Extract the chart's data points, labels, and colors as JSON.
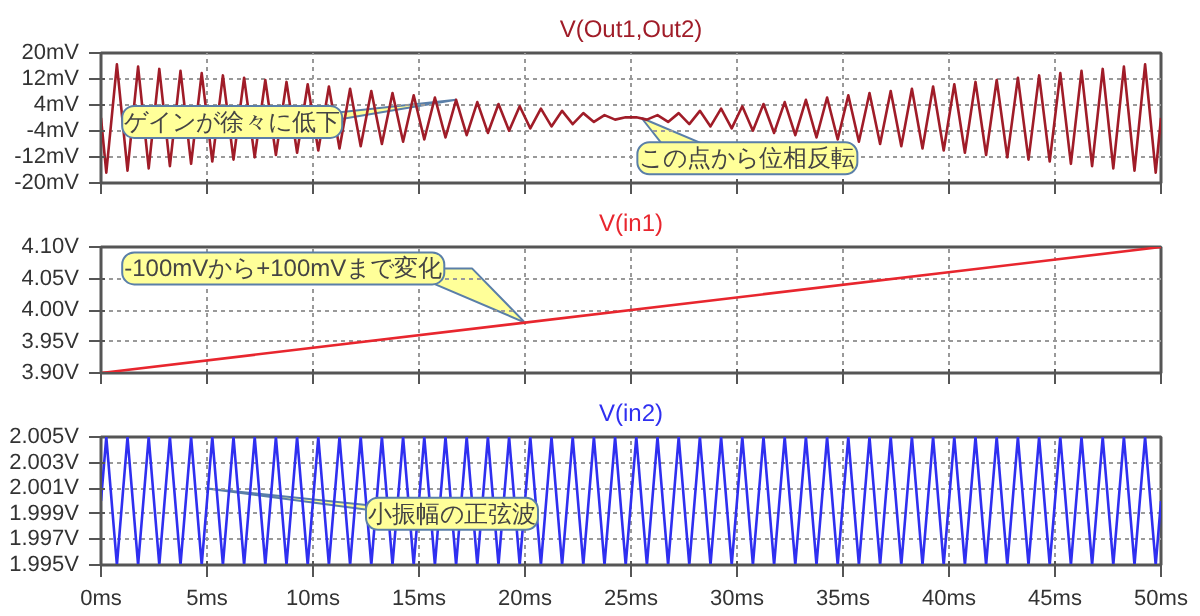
{
  "chart_data": [
    {
      "type": "line",
      "x": [
        0,
        0.25,
        0.75,
        1.25,
        1.75,
        2.25,
        2.75,
        3.25,
        3.75,
        4.25,
        4.75,
        5.25,
        5.75,
        6.25,
        6.75,
        7.25,
        7.75,
        8.25,
        8.75,
        9.25,
        9.75,
        10.25,
        10.75,
        11.25,
        11.75,
        12.25,
        12.75,
        13.25,
        13.75,
        14.25,
        14.75,
        15.25,
        15.75,
        16.25,
        16.75,
        17.25,
        17.75,
        18.25,
        18.75,
        19.25,
        19.75,
        20.25,
        20.75,
        21.25,
        21.75,
        22.25,
        22.75,
        23.25,
        23.75,
        24.25,
        24.75,
        25.25,
        25.75,
        26.25,
        26.75,
        27.25,
        27.75,
        28.25,
        28.75,
        29.25,
        29.75,
        30.25,
        30.75,
        31.25,
        31.75,
        32.25,
        32.75,
        33.25,
        33.75,
        34.25,
        34.75,
        35.25,
        35.75,
        36.25,
        36.75,
        37.25,
        37.75,
        38.25,
        38.75,
        39.25,
        39.75,
        40.25,
        40.75,
        41.25,
        41.75,
        42.25,
        42.75,
        43.25,
        43.75,
        44.25,
        44.75,
        45.25,
        45.75,
        46.25,
        46.75,
        47.25,
        47.75,
        48.25,
        48.75,
        49.25,
        49.75,
        50
      ],
      "series": [
        {
          "name": "V(Out1,Out2)",
          "color": "#a01c28",
          "values": [
            0,
            -16.8,
            16.5,
            -16.2,
            15.8,
            -15.5,
            15.1,
            -14.8,
            14.5,
            -14.1,
            13.8,
            -13.4,
            13.1,
            -12.8,
            12.4,
            -12.1,
            11.7,
            -11.4,
            11.1,
            -10.7,
            10.4,
            -10.0,
            9.7,
            -9.4,
            9.0,
            -8.7,
            8.3,
            -8.0,
            7.7,
            -7.3,
            7.0,
            -6.6,
            6.3,
            -6.0,
            5.6,
            -5.3,
            4.9,
            -4.6,
            4.3,
            -3.9,
            3.6,
            -3.2,
            2.9,
            -2.6,
            2.2,
            -1.9,
            1.5,
            -1.2,
            0.9,
            -0.5,
            0.2,
            0.2,
            -0.5,
            0.9,
            -1.2,
            1.5,
            -1.9,
            2.2,
            -2.6,
            2.9,
            -3.2,
            3.6,
            -3.9,
            4.3,
            -4.6,
            4.9,
            -5.3,
            5.6,
            -6.0,
            6.3,
            -6.6,
            7.0,
            -7.3,
            7.7,
            -8.0,
            8.3,
            -8.7,
            9.0,
            -9.4,
            9.7,
            -10.0,
            10.4,
            -10.7,
            11.1,
            -11.4,
            11.7,
            -12.1,
            12.4,
            -12.8,
            13.1,
            -13.4,
            13.8,
            -14.1,
            14.5,
            -14.8,
            15.1,
            -15.5,
            15.8,
            -16.2,
            16.5,
            -16.8,
            0
          ]
        }
      ],
      "xlim": [
        0,
        50
      ],
      "xticks": [
        0,
        5,
        10,
        15,
        20,
        25,
        30,
        35,
        40,
        45,
        50
      ],
      "ylim": [
        -20,
        20
      ],
      "yticks": [
        {
          "value": -20,
          "label": "-20mV"
        },
        {
          "value": -12,
          "label": "-12mV"
        },
        {
          "value": -4,
          "label": "-4mV"
        },
        {
          "value": 4,
          "label": "4mV"
        },
        {
          "value": 12,
          "label": "12mV"
        },
        {
          "value": 20,
          "label": "20mV"
        }
      ],
      "grid": true,
      "tick_labels": "y",
      "annotations": [
        {
          "text": "ゲインが徐々に低下",
          "x": 16.75,
          "y": 5.6
        },
        {
          "text": "この点から位相反転",
          "x": 25.5,
          "y": 0
        }
      ]
    },
    {
      "type": "line",
      "x": [
        0,
        50
      ],
      "series": [
        {
          "name": "V(in1)",
          "color": "#e8262e",
          "values": [
            3.9,
            4.1
          ]
        }
      ],
      "xlim": [
        0,
        50
      ],
      "xticks": [
        0,
        5,
        10,
        15,
        20,
        25,
        30,
        35,
        40,
        45,
        50
      ],
      "ylim": [
        3.9,
        4.1
      ],
      "yticks": [
        {
          "value": 3.9,
          "label": "3.90V"
        },
        {
          "value": 3.95,
          "label": "3.95V"
        },
        {
          "value": 4.0,
          "label": "4.00V"
        },
        {
          "value": 4.05,
          "label": "4.05V"
        },
        {
          "value": 4.1,
          "label": "4.10V"
        }
      ],
      "grid": true,
      "tick_labels": "y",
      "annotations": [
        {
          "text": "-100mVから+100mVまで変化",
          "x": 20,
          "y": 3.98
        }
      ]
    },
    {
      "type": "line",
      "x": [
        0,
        0.25,
        0.75,
        1.25,
        1.75,
        2.25,
        2.75,
        3.25,
        3.75,
        4.25,
        4.75,
        5.25,
        5.75,
        6.25,
        6.75,
        7.25,
        7.75,
        8.25,
        8.75,
        9.25,
        9.75,
        10.25,
        10.75,
        11.25,
        11.75,
        12.25,
        12.75,
        13.25,
        13.75,
        14.25,
        14.75,
        15.25,
        15.75,
        16.25,
        16.75,
        17.25,
        17.75,
        18.25,
        18.75,
        19.25,
        19.75,
        20.25,
        20.75,
        21.25,
        21.75,
        22.25,
        22.75,
        23.25,
        23.75,
        24.25,
        24.75,
        25.25,
        25.75,
        26.25,
        26.75,
        27.25,
        27.75,
        28.25,
        28.75,
        29.25,
        29.75,
        30.25,
        30.75,
        31.25,
        31.75,
        32.25,
        32.75,
        33.25,
        33.75,
        34.25,
        34.75,
        35.25,
        35.75,
        36.25,
        36.75,
        37.25,
        37.75,
        38.25,
        38.75,
        39.25,
        39.75,
        40.25,
        40.75,
        41.25,
        41.75,
        42.25,
        42.75,
        43.25,
        43.75,
        44.25,
        44.75,
        45.25,
        45.75,
        46.25,
        46.75,
        47.25,
        47.75,
        48.25,
        48.75,
        49.25,
        49.75,
        50
      ],
      "series": [
        {
          "name": "V(in2)",
          "color": "#2f2ff0",
          "values": [
            2.0,
            2.005,
            1.995,
            2.005,
            1.995,
            2.005,
            1.995,
            2.005,
            1.995,
            2.005,
            1.995,
            2.005,
            1.995,
            2.005,
            1.995,
            2.005,
            1.995,
            2.005,
            1.995,
            2.005,
            1.995,
            2.005,
            1.995,
            2.005,
            1.995,
            2.005,
            1.995,
            2.005,
            1.995,
            2.005,
            1.995,
            2.005,
            1.995,
            2.005,
            1.995,
            2.005,
            1.995,
            2.005,
            1.995,
            2.005,
            1.995,
            2.005,
            1.995,
            2.005,
            1.995,
            2.005,
            1.995,
            2.005,
            1.995,
            2.005,
            1.995,
            2.005,
            1.995,
            2.005,
            1.995,
            2.005,
            1.995,
            2.005,
            1.995,
            2.005,
            1.995,
            2.005,
            1.995,
            2.005,
            1.995,
            2.005,
            1.995,
            2.005,
            1.995,
            2.005,
            1.995,
            2.005,
            1.995,
            2.005,
            1.995,
            2.005,
            1.995,
            2.005,
            1.995,
            2.005,
            1.995,
            2.005,
            1.995,
            2.005,
            1.995,
            2.005,
            1.995,
            2.005,
            1.995,
            2.005,
            1.995,
            2.005,
            1.995,
            2.005,
            1.995,
            2.005,
            1.995,
            2.005,
            1.995,
            2.005,
            1.995,
            2.0
          ]
        }
      ],
      "xlim": [
        0,
        50
      ],
      "xticks": [
        {
          "value": 0,
          "label": "0ms"
        },
        {
          "value": 5,
          "label": "5ms"
        },
        {
          "value": 10,
          "label": "10ms"
        },
        {
          "value": 15,
          "label": "15ms"
        },
        {
          "value": 20,
          "label": "20ms"
        },
        {
          "value": 25,
          "label": "25ms"
        },
        {
          "value": 30,
          "label": "30ms"
        },
        {
          "value": 35,
          "label": "35ms"
        },
        {
          "value": 40,
          "label": "40ms"
        },
        {
          "value": 45,
          "label": "45ms"
        },
        {
          "value": 50,
          "label": "50ms"
        }
      ],
      "ylim": [
        1.995,
        2.005
      ],
      "yticks": [
        {
          "value": 1.995,
          "label": "1.995V"
        },
        {
          "value": 1.997,
          "label": "1.997V"
        },
        {
          "value": 1.999,
          "label": "1.999V"
        },
        {
          "value": 2.001,
          "label": "2.001V"
        },
        {
          "value": 2.003,
          "label": "2.003V"
        },
        {
          "value": 2.005,
          "label": "2.005V"
        }
      ],
      "grid": true,
      "annotations": [
        {
          "text": "小振幅の正弦波",
          "x": 4.9,
          "y": 2.001
        }
      ]
    }
  ]
}
